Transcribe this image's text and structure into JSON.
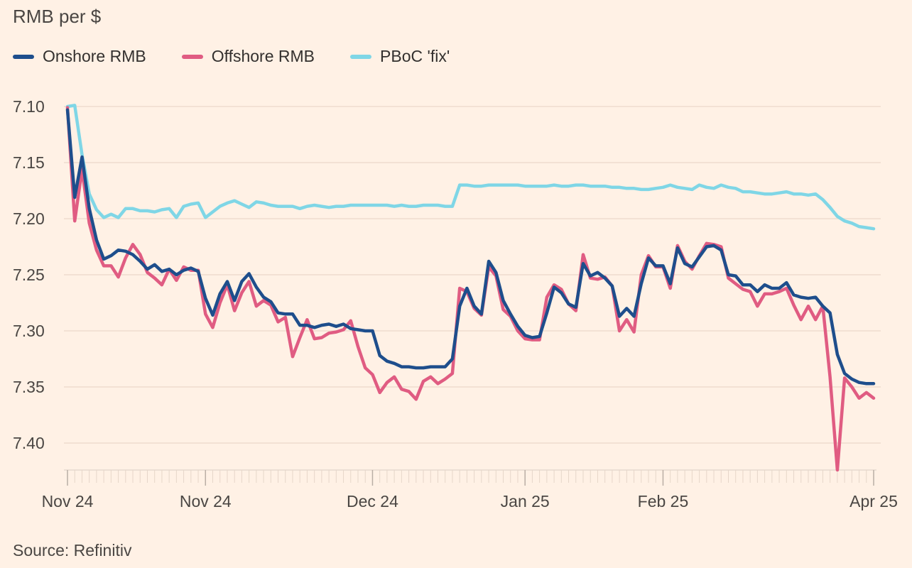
{
  "chart_data": {
    "type": "line",
    "title": "",
    "ylabel": "RMB per $",
    "y_inverted": true,
    "ylim": [
      7.1,
      7.43
    ],
    "yticks": [
      7.1,
      7.15,
      7.2,
      7.25,
      7.3,
      7.35,
      7.4
    ],
    "ytick_labels": [
      "7.10",
      "7.15",
      "7.20",
      "7.25",
      "7.30",
      "7.35",
      "7.40"
    ],
    "xticks": [
      {
        "label": "Nov 24",
        "index": 0
      },
      {
        "label": "Nov 24",
        "index": 19
      },
      {
        "label": "Dec 24",
        "index": 42
      },
      {
        "label": "Jan 25",
        "index": 63
      },
      {
        "label": "Feb 25",
        "index": 82
      },
      {
        "label": "Apr 25",
        "index": 111
      }
    ],
    "n_points": 112,
    "series": [
      {
        "name": "Onshore RMB",
        "color": "#1E4E8C",
        "values": [
          7.103,
          7.181,
          7.145,
          7.191,
          7.219,
          7.236,
          7.233,
          7.228,
          7.229,
          7.232,
          7.238,
          7.245,
          7.241,
          7.247,
          7.245,
          7.25,
          7.246,
          7.244,
          7.247,
          7.271,
          7.286,
          7.267,
          7.256,
          7.273,
          7.256,
          7.249,
          7.261,
          7.27,
          7.274,
          7.284,
          7.285,
          7.285,
          7.295,
          7.295,
          7.297,
          7.295,
          7.294,
          7.296,
          7.294,
          7.298,
          7.299,
          7.3,
          7.3,
          7.322,
          7.327,
          7.329,
          7.332,
          7.332,
          7.333,
          7.333,
          7.332,
          7.332,
          7.332,
          7.325,
          7.278,
          7.262,
          7.278,
          7.285,
          7.238,
          7.248,
          7.273,
          7.285,
          7.296,
          7.304,
          7.306,
          7.305,
          7.284,
          7.261,
          7.266,
          7.276,
          7.279,
          7.24,
          7.251,
          7.248,
          7.253,
          7.26,
          7.287,
          7.28,
          7.287,
          7.258,
          7.235,
          7.242,
          7.242,
          7.258,
          7.226,
          7.24,
          7.243,
          7.234,
          7.225,
          7.224,
          7.228,
          7.25,
          7.251,
          7.259,
          7.259,
          7.265,
          7.259,
          7.262,
          7.262,
          7.257,
          7.268,
          7.27,
          7.271,
          7.27,
          7.278,
          7.284,
          7.321,
          7.338,
          7.343,
          7.346,
          7.347,
          7.347
        ]
      },
      {
        "name": "Offshore RMB",
        "color": "#E05C82",
        "values": [
          7.101,
          7.202,
          7.156,
          7.204,
          7.228,
          7.242,
          7.242,
          7.252,
          7.235,
          7.223,
          7.232,
          7.248,
          7.253,
          7.259,
          7.245,
          7.255,
          7.243,
          7.246,
          7.246,
          7.285,
          7.297,
          7.275,
          7.259,
          7.282,
          7.266,
          7.256,
          7.278,
          7.273,
          7.277,
          7.292,
          7.288,
          7.323,
          7.306,
          7.29,
          7.307,
          7.306,
          7.302,
          7.301,
          7.299,
          7.291,
          7.314,
          7.333,
          7.339,
          7.355,
          7.346,
          7.341,
          7.352,
          7.354,
          7.361,
          7.345,
          7.341,
          7.347,
          7.343,
          7.338,
          7.262,
          7.265,
          7.28,
          7.286,
          7.243,
          7.251,
          7.281,
          7.287,
          7.3,
          7.307,
          7.308,
          7.308,
          7.27,
          7.259,
          7.263,
          7.276,
          7.282,
          7.232,
          7.253,
          7.254,
          7.252,
          7.26,
          7.3,
          7.29,
          7.301,
          7.25,
          7.233,
          7.243,
          7.243,
          7.262,
          7.224,
          7.238,
          7.245,
          7.233,
          7.222,
          7.223,
          7.225,
          7.253,
          7.258,
          7.263,
          7.265,
          7.278,
          7.267,
          7.267,
          7.265,
          7.262,
          7.277,
          7.29,
          7.278,
          7.29,
          7.278,
          7.341,
          7.424,
          7.342,
          7.35,
          7.36,
          7.355,
          7.36
        ]
      },
      {
        "name": "PBoC 'fix'",
        "color": "#7FD6E6",
        "values": [
          7.1,
          7.099,
          7.143,
          7.178,
          7.192,
          7.199,
          7.196,
          7.199,
          7.191,
          7.191,
          7.193,
          7.193,
          7.194,
          7.192,
          7.191,
          7.199,
          7.189,
          7.187,
          7.186,
          7.199,
          7.194,
          7.189,
          7.186,
          7.184,
          7.187,
          7.19,
          7.185,
          7.186,
          7.188,
          7.189,
          7.189,
          7.189,
          7.191,
          7.189,
          7.188,
          7.189,
          7.19,
          7.189,
          7.189,
          7.188,
          7.188,
          7.188,
          7.188,
          7.188,
          7.188,
          7.189,
          7.188,
          7.189,
          7.189,
          7.188,
          7.188,
          7.188,
          7.189,
          7.189,
          7.17,
          7.17,
          7.171,
          7.171,
          7.17,
          7.17,
          7.17,
          7.17,
          7.17,
          7.171,
          7.171,
          7.171,
          7.171,
          7.17,
          7.171,
          7.171,
          7.17,
          7.17,
          7.171,
          7.171,
          7.171,
          7.172,
          7.172,
          7.173,
          7.173,
          7.174,
          7.174,
          7.173,
          7.172,
          7.17,
          7.172,
          7.173,
          7.174,
          7.17,
          7.172,
          7.173,
          7.17,
          7.172,
          7.173,
          7.176,
          7.176,
          7.177,
          7.178,
          7.178,
          7.177,
          7.176,
          7.178,
          7.178,
          7.179,
          7.178,
          7.183,
          7.19,
          7.198,
          7.202,
          7.204,
          7.207,
          7.208,
          7.209
        ]
      }
    ],
    "grid": "horizontal",
    "legend_position": "top-left",
    "source": "Source: Refinitiv"
  }
}
